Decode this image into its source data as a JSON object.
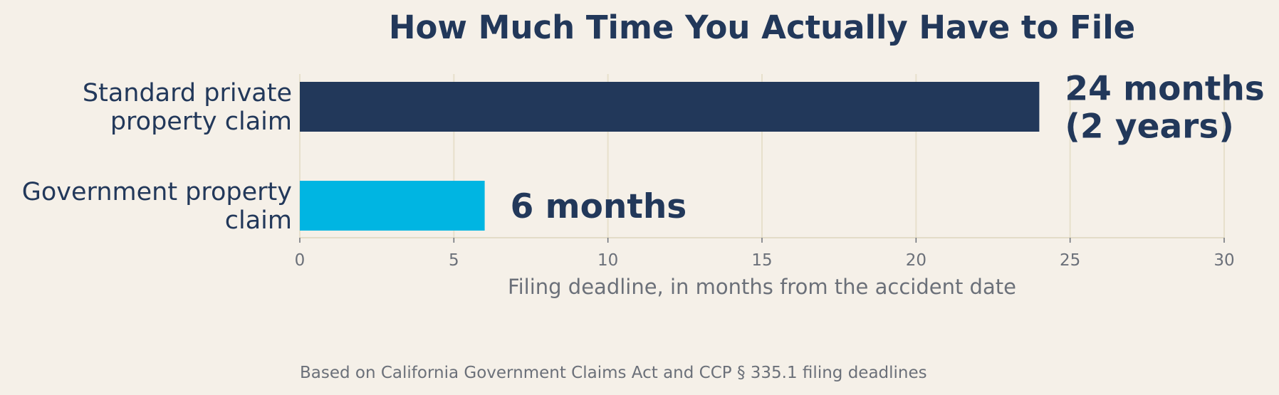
{
  "chart_data": {
    "type": "bar",
    "orientation": "horizontal",
    "title": "How Much Time You Actually Have to File",
    "categories": [
      [
        "Standard private",
        "property claim"
      ],
      [
        "Government property",
        "claim"
      ]
    ],
    "values": [
      24,
      6
    ],
    "data_labels": [
      [
        "24 months",
        "(2 years)"
      ],
      [
        "6 months"
      ]
    ],
    "colors": [
      "#22385a",
      "#00b5e2"
    ],
    "xlabel": "Filing deadline, in months from the accident date",
    "ylabel": "",
    "xlim": [
      0,
      30
    ],
    "xticks": [
      0,
      5,
      10,
      15,
      20,
      25,
      30
    ],
    "grid": "vertical",
    "legend": "none"
  },
  "footnote": "Based on California Government Claims Act and CCP § 335.1 filing deadlines"
}
